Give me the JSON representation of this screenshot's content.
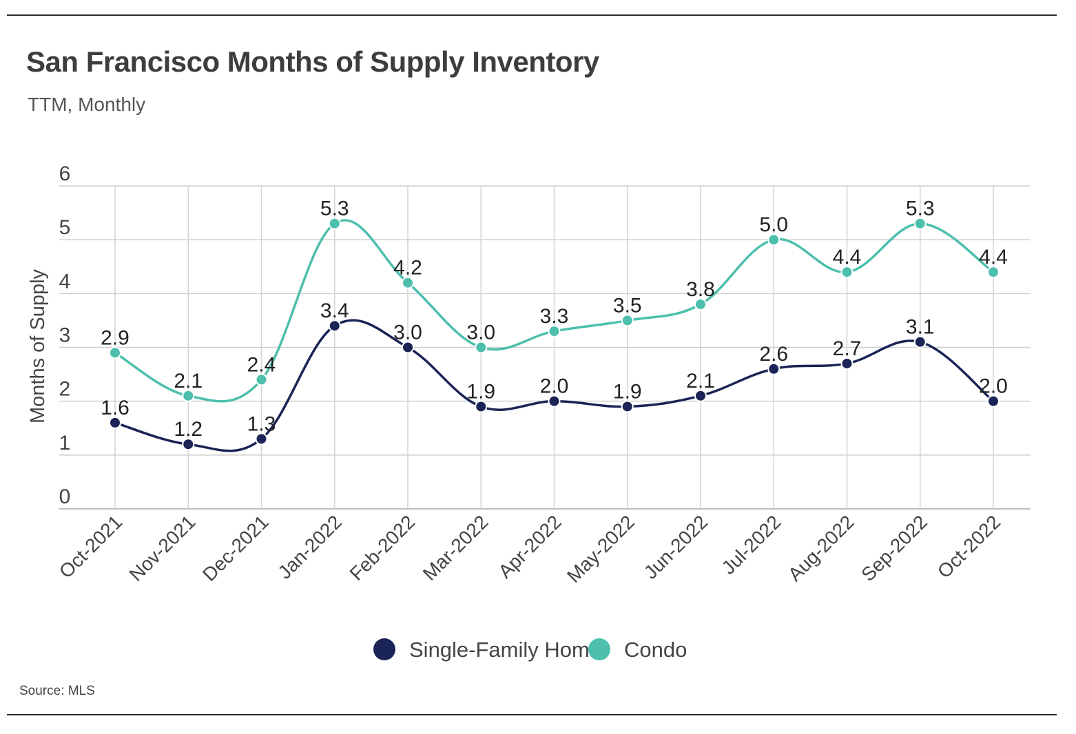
{
  "header": {
    "title": "San Francisco Months of Supply Inventory",
    "subtitle": "TTM, Monthly"
  },
  "footer": {
    "source": "Source:  MLS"
  },
  "chart_data": {
    "type": "line",
    "title": "San Francisco Months of Supply Inventory",
    "subtitle": "TTM, Monthly",
    "xlabel": "",
    "ylabel": "Months of Supply",
    "ylim": [
      0,
      6
    ],
    "yticks": [
      0,
      1,
      2,
      3,
      4,
      5,
      6
    ],
    "grid": true,
    "legend_position": "bottom-center",
    "categories": [
      "Oct-2021",
      "Nov-2021",
      "Dec-2021",
      "Jan-2022",
      "Feb-2022",
      "Mar-2022",
      "Apr-2022",
      "May-2022",
      "Jun-2022",
      "Jul-2022",
      "Aug-2022",
      "Sep-2022",
      "Oct-2022"
    ],
    "series": [
      {
        "name": "Single-Family Home",
        "color": "#1a2456",
        "values": [
          1.6,
          1.2,
          1.3,
          3.4,
          3.0,
          1.9,
          2.0,
          1.9,
          2.1,
          2.6,
          2.7,
          3.1,
          2.0
        ],
        "labels": [
          "1.6",
          "1.2",
          "1.3",
          "3.4",
          "3.0",
          "1.9",
          "2.0",
          "1.9",
          "2.1",
          "2.6",
          "2.7",
          "3.1",
          "2.0"
        ]
      },
      {
        "name": "Condo",
        "color": "#4dbfad",
        "values": [
          2.9,
          2.1,
          2.4,
          5.3,
          4.2,
          3.0,
          3.3,
          3.5,
          3.8,
          5.0,
          4.4,
          5.3,
          4.4
        ],
        "labels": [
          "2.9",
          "2.1",
          "2.4",
          "5.3",
          "4.2",
          "3.0",
          "3.3",
          "3.5",
          "3.8",
          "5.0",
          "4.4",
          "5.3",
          "4.4"
        ]
      }
    ]
  }
}
